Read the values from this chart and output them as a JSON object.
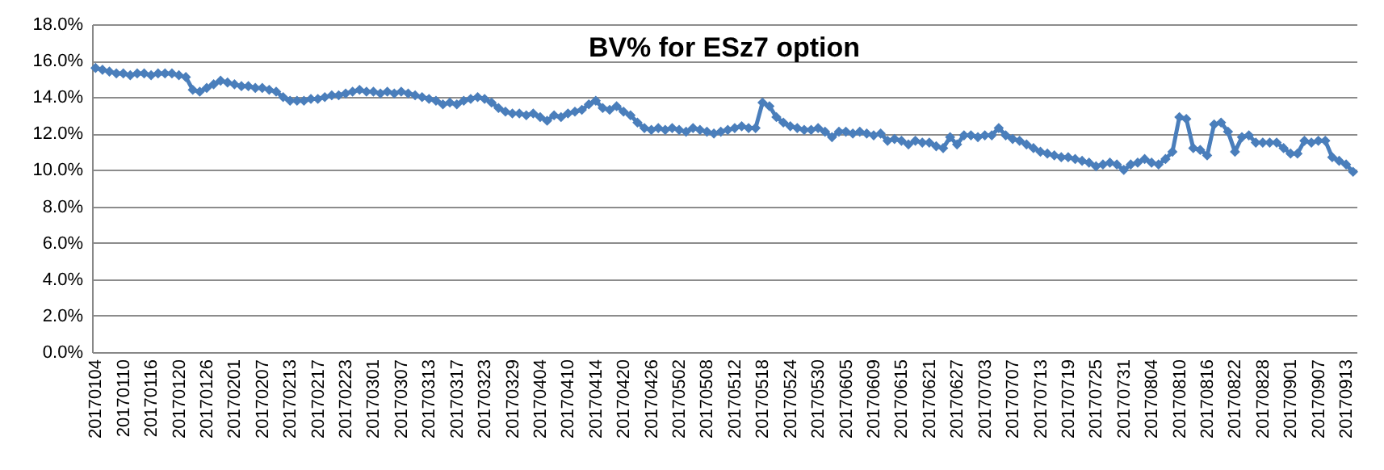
{
  "chart_data": {
    "type": "line",
    "title": "BV% for ESz7 option",
    "categories": [
      "20170104",
      null,
      null,
      null,
      "20170110",
      null,
      null,
      null,
      "20170116",
      null,
      null,
      null,
      "20170120",
      null,
      null,
      null,
      "20170126",
      null,
      null,
      null,
      "20170201",
      null,
      null,
      null,
      "20170207",
      null,
      null,
      null,
      "20170213",
      null,
      null,
      null,
      "20170217",
      null,
      null,
      null,
      "20170223",
      null,
      null,
      null,
      "20170301",
      null,
      null,
      null,
      "20170307",
      null,
      null,
      null,
      "20170313",
      null,
      null,
      null,
      "20170317",
      null,
      null,
      null,
      "20170323",
      null,
      null,
      null,
      "20170329",
      null,
      null,
      null,
      "20170404",
      null,
      null,
      null,
      "20170410",
      null,
      null,
      null,
      "20170414",
      null,
      null,
      null,
      "20170420",
      null,
      null,
      null,
      "20170426",
      null,
      null,
      null,
      "20170502",
      null,
      null,
      null,
      "20170508",
      null,
      null,
      null,
      "20170512",
      null,
      null,
      null,
      "20170518",
      null,
      null,
      null,
      "20170524",
      null,
      null,
      null,
      "20170530",
      null,
      null,
      null,
      "20170605",
      null,
      null,
      null,
      "20170609",
      null,
      null,
      null,
      "20170615",
      null,
      null,
      null,
      "20170621",
      null,
      null,
      null,
      "20170627",
      null,
      null,
      null,
      "20170703",
      null,
      null,
      null,
      "20170707",
      null,
      null,
      null,
      "20170713",
      null,
      null,
      null,
      "20170719",
      null,
      null,
      null,
      "20170725",
      null,
      null,
      null,
      "20170731",
      null,
      null,
      null,
      "20170804",
      null,
      null,
      null,
      "20170810",
      null,
      null,
      null,
      "20170816",
      null,
      null,
      null,
      "20170822",
      null,
      null,
      null,
      "20170828",
      null,
      null,
      null,
      "20170901",
      null,
      null,
      null,
      "20170907",
      null,
      null,
      null,
      "20170913",
      null
    ],
    "series": [
      {
        "color": "#4a7ebb",
        "values": [
          15.6,
          15.5,
          15.4,
          15.3,
          15.3,
          15.2,
          15.3,
          15.3,
          15.2,
          15.3,
          15.3,
          15.3,
          15.2,
          15.1,
          14.4,
          14.3,
          14.5,
          14.7,
          14.9,
          14.8,
          14.7,
          14.6,
          14.6,
          14.5,
          14.5,
          14.4,
          14.3,
          14.0,
          13.8,
          13.8,
          13.8,
          13.9,
          13.9,
          14.0,
          14.1,
          14.1,
          14.2,
          14.3,
          14.4,
          14.3,
          14.3,
          14.2,
          14.3,
          14.2,
          14.3,
          14.2,
          14.1,
          14.0,
          13.9,
          13.8,
          13.6,
          13.7,
          13.6,
          13.8,
          13.9,
          14.0,
          13.9,
          13.7,
          13.4,
          13.2,
          13.1,
          13.1,
          13.0,
          13.1,
          12.9,
          12.7,
          13.0,
          12.9,
          13.1,
          13.2,
          13.3,
          13.6,
          13.8,
          13.4,
          13.3,
          13.5,
          13.2,
          13.0,
          12.6,
          12.3,
          12.2,
          12.3,
          12.2,
          12.3,
          12.2,
          12.1,
          12.3,
          12.2,
          12.1,
          12.0,
          12.1,
          12.2,
          12.3,
          12.4,
          12.3,
          12.3,
          13.7,
          13.5,
          12.9,
          12.6,
          12.4,
          12.3,
          12.2,
          12.2,
          12.3,
          12.1,
          11.8,
          12.1,
          12.1,
          12.0,
          12.1,
          12.0,
          11.9,
          12.0,
          11.6,
          11.7,
          11.6,
          11.4,
          11.6,
          11.5,
          11.5,
          11.3,
          11.2,
          11.8,
          11.4,
          11.9,
          11.9,
          11.8,
          11.9,
          11.9,
          12.3,
          11.9,
          11.7,
          11.6,
          11.4,
          11.2,
          11.0,
          10.9,
          10.8,
          10.7,
          10.7,
          10.6,
          10.5,
          10.4,
          10.2,
          10.3,
          10.4,
          10.3,
          10.0,
          10.3,
          10.4,
          10.6,
          10.4,
          10.3,
          10.6,
          11.0,
          12.9,
          12.8,
          11.2,
          11.1,
          10.8,
          12.5,
          12.6,
          12.1,
          11.0,
          11.8,
          11.9,
          11.5,
          11.5,
          11.5,
          11.5,
          11.2,
          10.9,
          10.9,
          11.6,
          11.5,
          11.6,
          11.6,
          10.7,
          10.5,
          10.3,
          9.9
        ]
      }
    ],
    "ylim": [
      0,
      18
    ],
    "yticks": [
      {
        "value": 0,
        "label": "0.0%"
      },
      {
        "value": 2,
        "label": "2.0%"
      },
      {
        "value": 4,
        "label": "4.0%"
      },
      {
        "value": 6,
        "label": "6.0%"
      },
      {
        "value": 8,
        "label": "8.0%"
      },
      {
        "value": 10,
        "label": "10.0%"
      },
      {
        "value": 12,
        "label": "12.0%"
      },
      {
        "value": 14,
        "label": "14.0%"
      },
      {
        "value": 16,
        "label": "16.0%"
      },
      {
        "value": 18,
        "label": "18.0%"
      }
    ],
    "grid": "y",
    "marker": "diamond",
    "line_style": "solid"
  }
}
